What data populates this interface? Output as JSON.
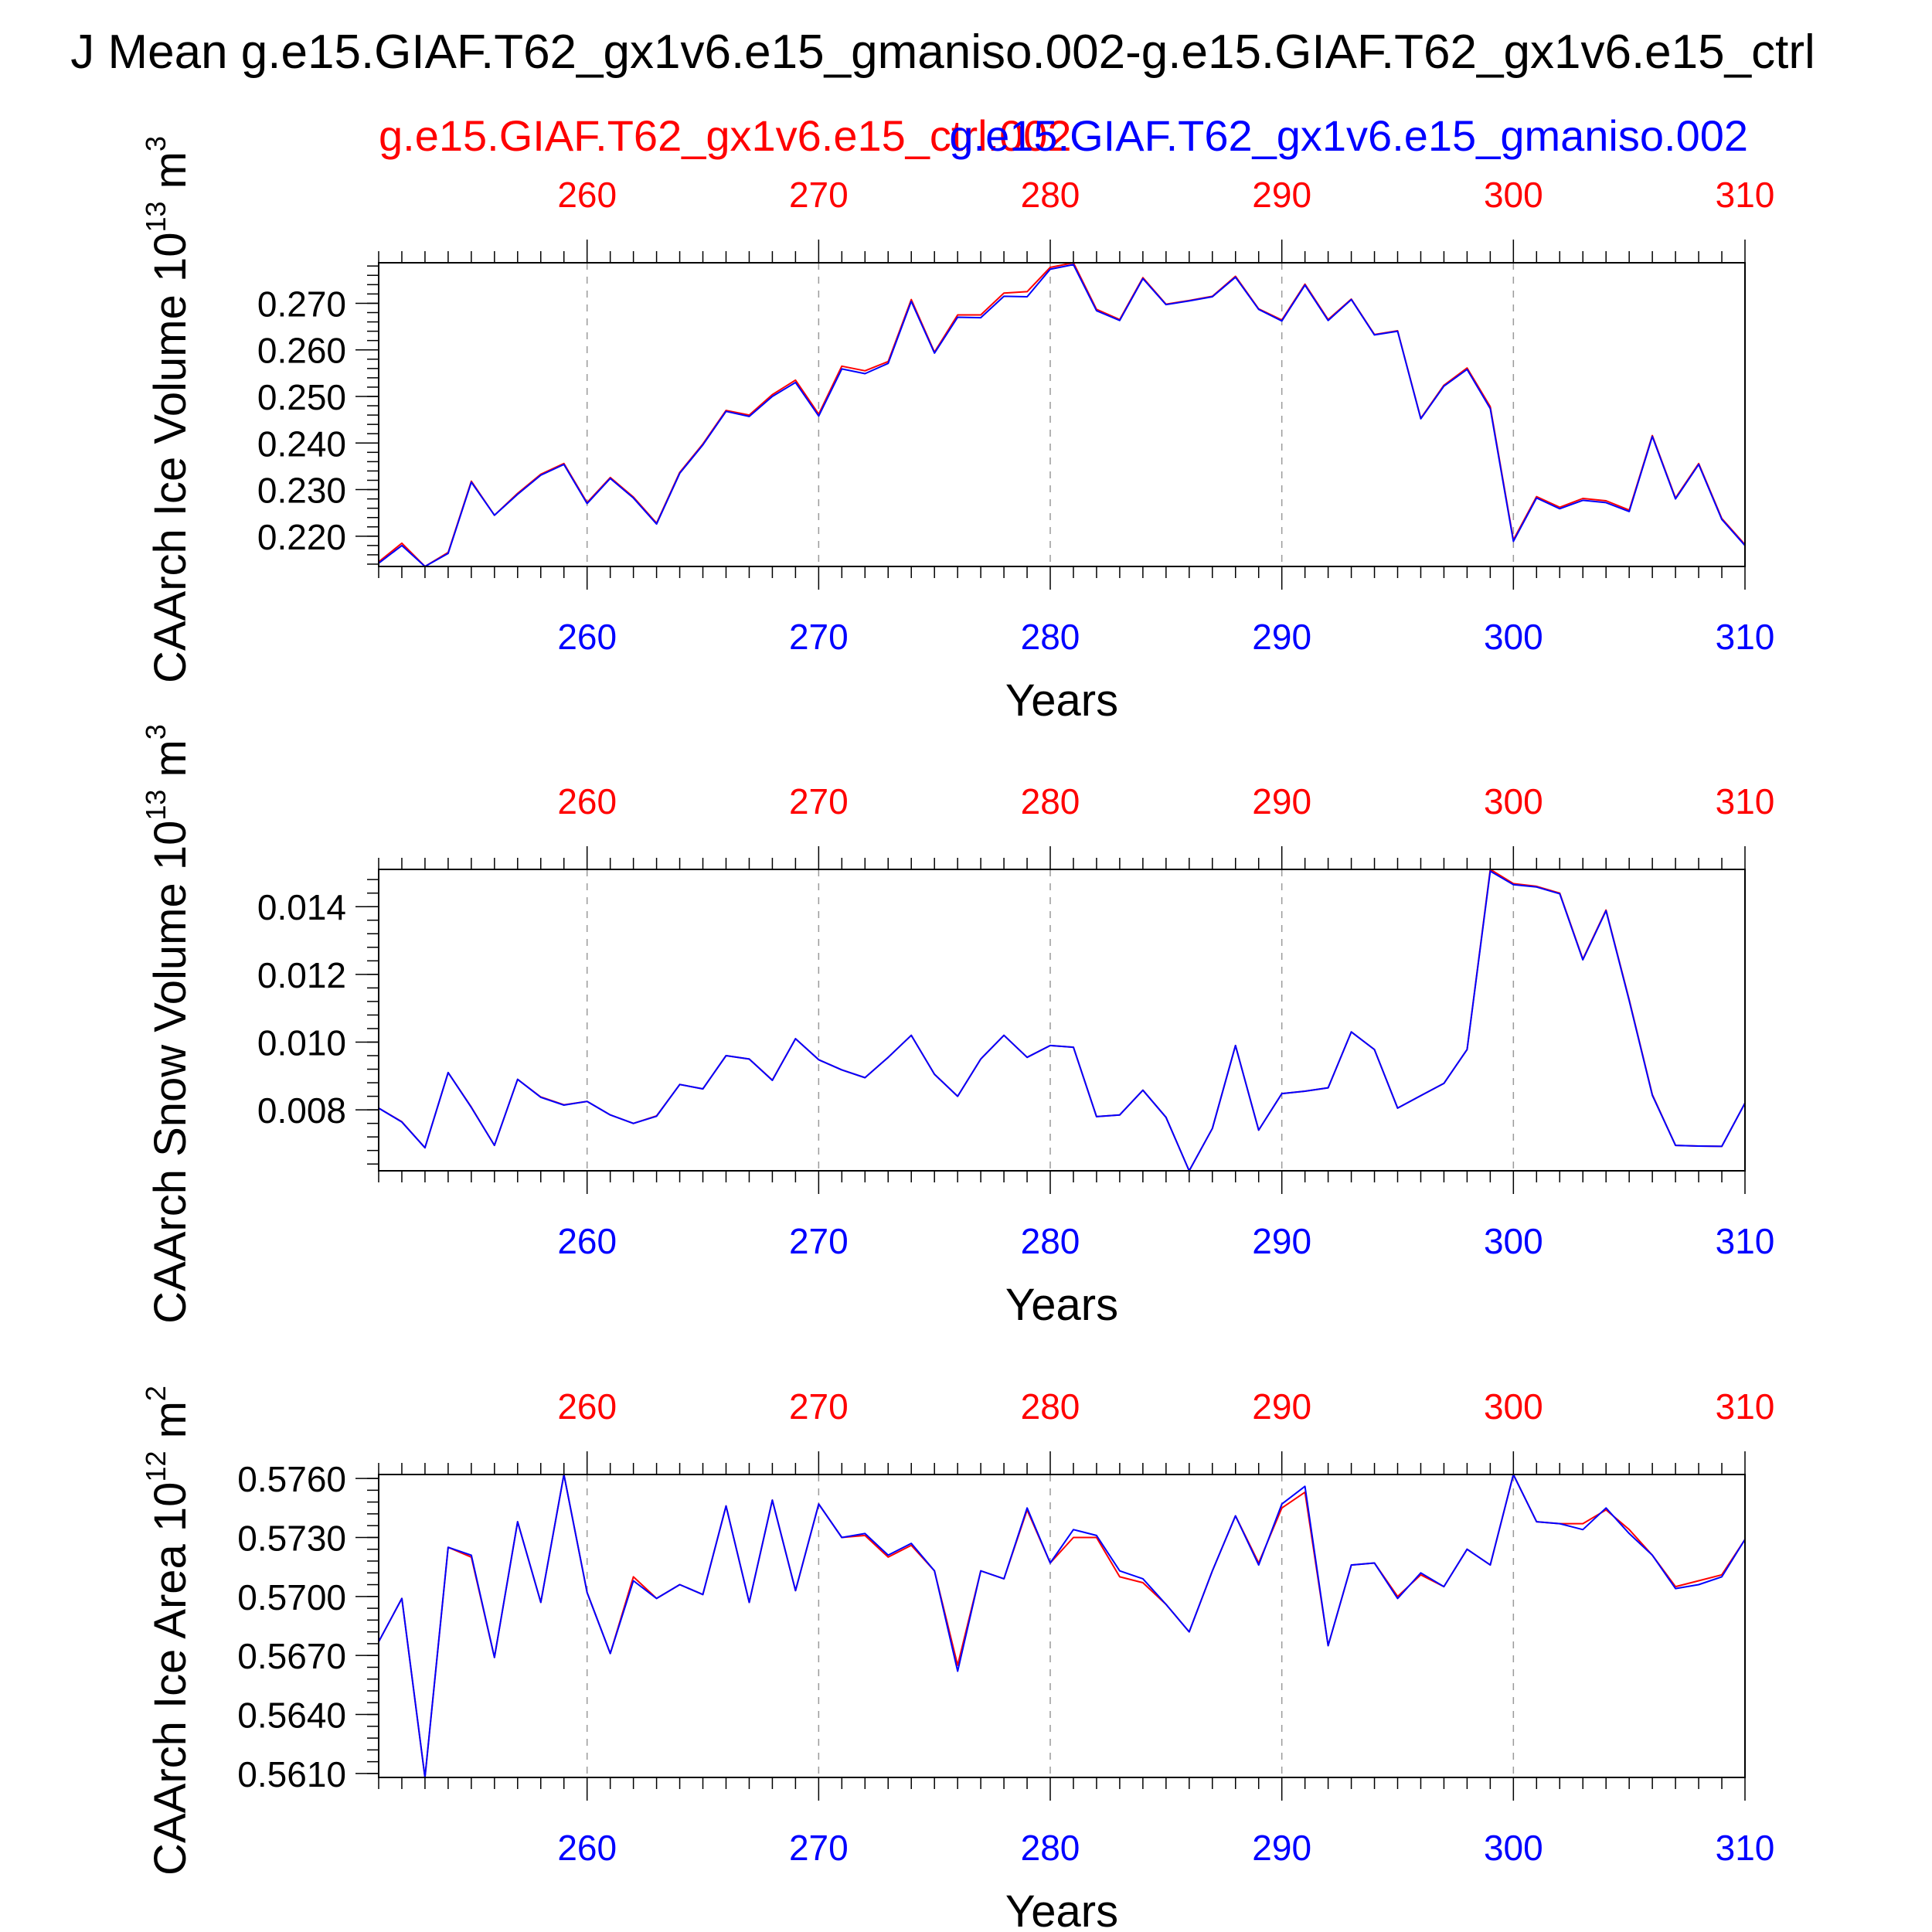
{
  "title": "J Mean g.e15.GIAF.T62_gx1v6.e15_gmaniso.002-g.e15.GIAF.T62_gx1v6.e15_ctrl",
  "legend": {
    "ctrl_name": "g.e15.GIAF.T62_gx1v6.e15_ctrl.002",
    "test_name": "g.e15.GIAF.T62_gx1v6.e15_gmaniso.002",
    "ctrl_color": "#ff0000",
    "test_color": "#0000ff"
  },
  "chart_data": [
    {
      "type": "line",
      "ylabel": "CAArch Ice Volume 10",
      "ylabel_exp": "13",
      "ylabel_unit": " m",
      "ylabel_unit_exp": "3",
      "xlabel": "Years",
      "xlim": [
        251,
        310
      ],
      "ylim": [
        0.2135,
        0.2787
      ],
      "y_ticks": [
        "0.220",
        "0.230",
        "0.240",
        "0.250",
        "0.260",
        "0.270"
      ],
      "y_tick_values": [
        0.22,
        0.23,
        0.24,
        0.25,
        0.26,
        0.27
      ],
      "x_ticks": [
        "260",
        "270",
        "280",
        "290",
        "300",
        "310"
      ],
      "x_tick_values": [
        260,
        270,
        280,
        290,
        300,
        310
      ],
      "grid": "vertical dashed at major x ticks",
      "x": [
        251,
        252,
        253,
        254,
        255,
        256,
        257,
        258,
        259,
        260,
        261,
        262,
        263,
        264,
        265,
        266,
        267,
        268,
        269,
        270,
        271,
        272,
        273,
        274,
        275,
        276,
        277,
        278,
        279,
        280,
        281,
        282,
        283,
        284,
        285,
        286,
        287,
        288,
        289,
        290,
        291,
        292,
        293,
        294,
        295,
        296,
        297,
        298,
        299,
        300,
        301,
        302,
        303,
        304,
        305,
        306,
        307,
        308,
        309,
        310
      ],
      "series": [
        {
          "name": "g.e15.GIAF.T62_gx1v6.e15_ctrl.002",
          "color": "#ff0000",
          "values": [
            0.2145,
            0.2185,
            0.2135,
            0.2165,
            0.2318,
            0.2245,
            0.2292,
            0.2333,
            0.2356,
            0.2272,
            0.2326,
            0.2284,
            0.2228,
            0.2337,
            0.2398,
            0.247,
            0.246,
            0.2504,
            0.2535,
            0.2462,
            0.2565,
            0.2555,
            0.2575,
            0.2708,
            0.2595,
            0.2675,
            0.2675,
            0.2722,
            0.2725,
            0.2777,
            0.2787,
            0.2687,
            0.2665,
            0.2755,
            0.2698,
            0.2706,
            0.2715,
            0.2758,
            0.2688,
            0.2664,
            0.2741,
            0.2665,
            0.2709,
            0.2633,
            0.2641,
            0.2453,
            0.2524,
            0.2561,
            0.2478,
            0.2192,
            0.2285,
            0.2262,
            0.2281,
            0.2276,
            0.2256,
            0.2416,
            0.2282,
            0.2356,
            0.2238,
            0.2182
          ]
        },
        {
          "name": "g.e15.GIAF.T62_gx1v6.e15_gmaniso.002",
          "color": "#0000ff",
          "values": [
            0.2142,
            0.218,
            0.2135,
            0.2163,
            0.2316,
            0.2245,
            0.229,
            0.2331,
            0.2354,
            0.227,
            0.2324,
            0.2282,
            0.2226,
            0.2335,
            0.2396,
            0.2468,
            0.2457,
            0.25,
            0.253,
            0.2458,
            0.2559,
            0.2549,
            0.2571,
            0.2704,
            0.2593,
            0.267,
            0.2669,
            0.2715,
            0.2714,
            0.2773,
            0.2783,
            0.2684,
            0.2663,
            0.2753,
            0.2697,
            0.2705,
            0.2714,
            0.2756,
            0.2687,
            0.2662,
            0.2739,
            0.2663,
            0.2708,
            0.2632,
            0.264,
            0.2452,
            0.2522,
            0.2558,
            0.2474,
            0.2189,
            0.2282,
            0.2259,
            0.2277,
            0.2272,
            0.2253,
            0.2414,
            0.228,
            0.2354,
            0.2236,
            0.218
          ]
        }
      ]
    },
    {
      "type": "line",
      "ylabel": "CAArch Snow Volume 10",
      "ylabel_exp": "13",
      "ylabel_unit": " m",
      "ylabel_unit_exp": "3",
      "xlabel": "Years",
      "xlim": [
        251,
        310
      ],
      "ylim": [
        0.0062,
        0.0151
      ],
      "y_ticks": [
        "0.008",
        "0.010",
        "0.012",
        "0.014"
      ],
      "y_tick_values": [
        0.008,
        0.01,
        0.012,
        0.014
      ],
      "x_ticks": [
        "260",
        "270",
        "280",
        "290",
        "300",
        "310"
      ],
      "x_tick_values": [
        260,
        270,
        280,
        290,
        300,
        310
      ],
      "grid": "vertical dashed at major x ticks",
      "x": [
        251,
        252,
        253,
        254,
        255,
        256,
        257,
        258,
        259,
        260,
        261,
        262,
        263,
        264,
        265,
        266,
        267,
        268,
        269,
        270,
        271,
        272,
        273,
        274,
        275,
        276,
        277,
        278,
        279,
        280,
        281,
        282,
        283,
        284,
        285,
        286,
        287,
        288,
        289,
        290,
        291,
        292,
        293,
        294,
        295,
        296,
        297,
        298,
        299,
        300,
        301,
        302,
        303,
        304,
        305,
        306,
        307,
        308,
        309,
        310
      ],
      "series": [
        {
          "name": "g.e15.GIAF.T62_gx1v6.e15_ctrl.002",
          "color": "#ff0000",
          "values": [
            0.00805,
            0.00765,
            0.00688,
            0.0091,
            0.00808,
            0.00695,
            0.0089,
            0.00838,
            0.00815,
            0.00825,
            0.00785,
            0.0076,
            0.00782,
            0.00875,
            0.00862,
            0.0096,
            0.0095,
            0.00888,
            0.0101,
            0.00948,
            0.00918,
            0.00895,
            0.00955,
            0.0102,
            0.00905,
            0.0084,
            0.0095,
            0.0102,
            0.00955,
            0.0099,
            0.00985,
            0.0078,
            0.00785,
            0.00858,
            0.00778,
            0.0062,
            0.00745,
            0.0099,
            0.0074,
            0.00848,
            0.00855,
            0.00865,
            0.0103,
            0.00978,
            0.00805,
            0.00842,
            0.00878,
            0.00978,
            0.0151,
            0.01468,
            0.0146,
            0.0144,
            0.01245,
            0.0139,
            0.01125,
            0.00845,
            0.00695,
            0.00693,
            0.00692,
            0.0082
          ]
        },
        {
          "name": "g.e15.GIAF.T62_gx1v6.e15_gmaniso.002",
          "color": "#0000ff",
          "values": [
            0.00805,
            0.00764,
            0.00688,
            0.0091,
            0.00807,
            0.00695,
            0.0089,
            0.00837,
            0.00814,
            0.00825,
            0.00785,
            0.0076,
            0.00781,
            0.00875,
            0.00862,
            0.0096,
            0.0095,
            0.00887,
            0.0101,
            0.00948,
            0.00918,
            0.00895,
            0.00955,
            0.0102,
            0.00905,
            0.0084,
            0.0095,
            0.0102,
            0.00955,
            0.0099,
            0.00985,
            0.0078,
            0.00785,
            0.00858,
            0.00778,
            0.0062,
            0.00745,
            0.0099,
            0.0074,
            0.00848,
            0.00855,
            0.00865,
            0.0103,
            0.00978,
            0.00805,
            0.00842,
            0.00878,
            0.00978,
            0.01505,
            0.01465,
            0.01458,
            0.01438,
            0.01243,
            0.01388,
            0.01122,
            0.00843,
            0.00695,
            0.00693,
            0.00692,
            0.0082
          ]
        }
      ]
    },
    {
      "type": "line",
      "ylabel": "CAArch Ice Area 10",
      "ylabel_exp": "12",
      "ylabel_unit": " m",
      "ylabel_unit_exp": "2",
      "xlabel": "Years",
      "xlim": [
        251,
        310
      ],
      "ylim": [
        0.5608,
        0.5762
      ],
      "y_ticks": [
        "0.5610",
        "0.5640",
        "0.5670",
        "0.5700",
        "0.5730",
        "0.5760"
      ],
      "y_tick_values": [
        0.561,
        0.564,
        0.567,
        0.57,
        0.573,
        0.576
      ],
      "x_ticks": [
        "260",
        "270",
        "280",
        "290",
        "300",
        "310"
      ],
      "x_tick_values": [
        260,
        270,
        280,
        290,
        300,
        310
      ],
      "grid": "vertical dashed at major x ticks",
      "x": [
        251,
        252,
        253,
        254,
        255,
        256,
        257,
        258,
        259,
        260,
        261,
        262,
        263,
        264,
        265,
        266,
        267,
        268,
        269,
        270,
        271,
        272,
        273,
        274,
        275,
        276,
        277,
        278,
        279,
        280,
        281,
        282,
        283,
        284,
        285,
        286,
        287,
        288,
        289,
        290,
        291,
        292,
        293,
        294,
        295,
        296,
        297,
        298,
        299,
        300,
        301,
        302,
        303,
        304,
        305,
        306,
        307,
        308,
        309,
        310
      ],
      "series": [
        {
          "name": "g.e15.GIAF.T62_gx1v6.e15_ctrl.002",
          "color": "#ff0000",
          "values": [
            0.5677,
            0.5699,
            0.5608,
            0.5725,
            0.572,
            0.5669,
            0.5738,
            0.5697,
            0.5762,
            0.5702,
            0.5671,
            0.571,
            0.5699,
            0.5706,
            0.5701,
            0.5746,
            0.5697,
            0.5749,
            0.5703,
            0.5747,
            0.573,
            0.5731,
            0.572,
            0.5726,
            0.5713,
            0.5665,
            0.5713,
            0.5709,
            0.5744,
            0.5717,
            0.573,
            0.573,
            0.571,
            0.5707,
            0.5696,
            0.5682,
            0.5713,
            0.5741,
            0.5717,
            0.5745,
            0.5753,
            0.5675,
            0.5716,
            0.5717,
            0.57,
            0.5711,
            0.5705,
            0.5724,
            0.5716,
            0.5762,
            0.5738,
            0.5737,
            0.5737,
            0.5744,
            0.5734,
            0.5721,
            0.5705,
            0.5708,
            0.5711,
            0.5729
          ]
        },
        {
          "name": "g.e15.GIAF.T62_gx1v6.e15_gmaniso.002",
          "color": "#0000ff",
          "values": [
            0.5677,
            0.5699,
            0.5608,
            0.5725,
            0.5721,
            0.5669,
            0.5738,
            0.5697,
            0.5762,
            0.5702,
            0.5671,
            0.5708,
            0.5699,
            0.5706,
            0.5701,
            0.5746,
            0.5697,
            0.5749,
            0.5703,
            0.5747,
            0.573,
            0.5732,
            0.5721,
            0.5727,
            0.5713,
            0.5662,
            0.5713,
            0.5709,
            0.5745,
            0.5717,
            0.5734,
            0.5731,
            0.5713,
            0.5709,
            0.5696,
            0.5682,
            0.5713,
            0.5741,
            0.5716,
            0.5747,
            0.5756,
            0.5675,
            0.5716,
            0.5717,
            0.5699,
            0.5712,
            0.5705,
            0.5724,
            0.5716,
            0.5762,
            0.5738,
            0.5737,
            0.5734,
            0.5745,
            0.5732,
            0.5721,
            0.5704,
            0.5706,
            0.571,
            0.5729
          ]
        }
      ]
    }
  ]
}
